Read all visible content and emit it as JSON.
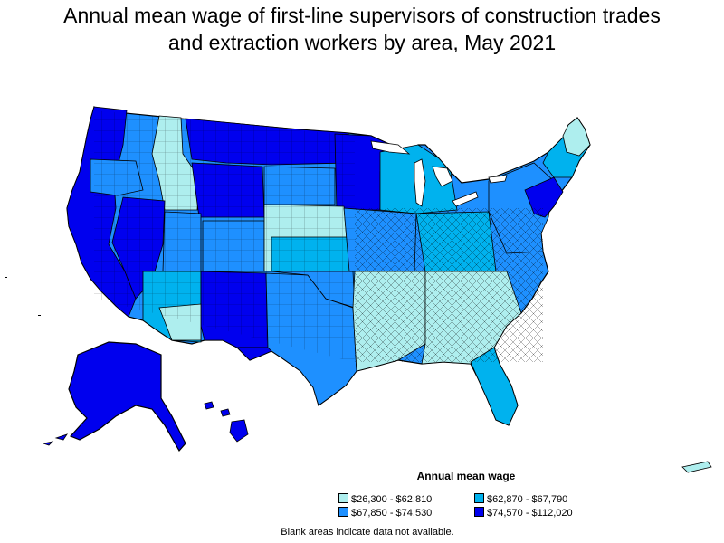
{
  "title_lines": [
    "Annual mean wage of first-line supervisors of construction trades",
    "and extraction workers by area, May 2021"
  ],
  "legend": {
    "title": "Annual mean wage",
    "items": [
      {
        "label": "$26,300 - $62,810",
        "color": "#aeeeee"
      },
      {
        "label": "$62,870 - $67,790",
        "color": "#00b2ee"
      },
      {
        "label": "$67,850 - $74,530",
        "color": "#1e90ff"
      },
      {
        "label": "$74,570 - $112,020",
        "color": "#0000ee"
      }
    ]
  },
  "note": "Blank areas indicate data not available."
}
